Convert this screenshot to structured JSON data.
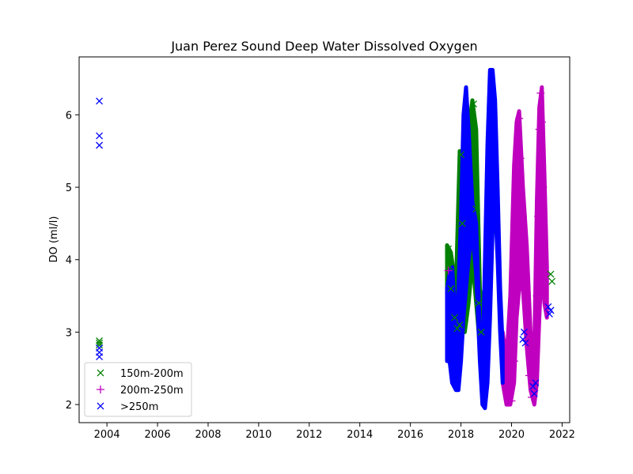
{
  "chart_data": {
    "type": "scatter",
    "title": "Juan Perez Sound Deep Water Dissolved Oxygen",
    "xlabel": "",
    "ylabel": "DO (ml/l)",
    "xlim": [
      2002.9,
      2022.3
    ],
    "ylim": [
      1.75,
      6.8
    ],
    "x_ticks": [
      2004,
      2006,
      2008,
      2010,
      2012,
      2014,
      2016,
      2018,
      2020,
      2022
    ],
    "y_ticks": [
      2,
      3,
      4,
      5,
      6
    ],
    "grid": false,
    "legend_position": "lower-left",
    "series": [
      {
        "name": "150m-200m",
        "marker": "x",
        "color": "#008000",
        "points": [
          [
            2003.7,
            2.88
          ],
          [
            2003.7,
            2.85
          ],
          [
            2003.7,
            2.82
          ],
          [
            2017.5,
            4.15
          ],
          [
            2017.55,
            3.9
          ],
          [
            2017.6,
            3.6
          ],
          [
            2017.75,
            3.2
          ],
          [
            2017.85,
            3.05
          ],
          [
            2017.95,
            3.1
          ],
          [
            2018.0,
            5.45
          ],
          [
            2018.05,
            4.5
          ],
          [
            2018.5,
            6.15
          ],
          [
            2018.55,
            5.5
          ],
          [
            2018.6,
            4.7
          ],
          [
            2018.7,
            3.4
          ],
          [
            2018.8,
            3.0
          ],
          [
            2021.55,
            3.8
          ],
          [
            2021.6,
            3.7
          ]
        ]
      },
      {
        "name": "200m-250m",
        "marker": "+",
        "color": "#bf00bf",
        "points": [
          [
            2017.5,
            3.85
          ],
          [
            2019.8,
            2.25
          ],
          [
            2019.9,
            2.1
          ],
          [
            2020.0,
            2.05
          ],
          [
            2020.1,
            2.6
          ],
          [
            2020.15,
            3.8
          ],
          [
            2020.2,
            5.2
          ],
          [
            2020.3,
            5.95
          ],
          [
            2020.35,
            5.4
          ],
          [
            2020.45,
            4.6
          ],
          [
            2020.5,
            3.8
          ],
          [
            2020.6,
            3.0
          ],
          [
            2020.7,
            2.4
          ],
          [
            2020.8,
            2.1
          ],
          [
            2020.9,
            2.2
          ],
          [
            2021.0,
            3.5
          ],
          [
            2021.05,
            4.6
          ],
          [
            2021.1,
            5.8
          ],
          [
            2021.15,
            6.3
          ],
          [
            2021.2,
            5.9
          ],
          [
            2021.25,
            5.0
          ],
          [
            2021.3,
            4.1
          ],
          [
            2021.35,
            3.8
          ]
        ]
      },
      {
        "name": ">250m",
        "marker": "x",
        "color": "#0000ff",
        "points": [
          [
            2003.7,
            6.19
          ],
          [
            2003.7,
            5.71
          ],
          [
            2003.7,
            5.58
          ],
          [
            2003.7,
            2.78
          ],
          [
            2003.7,
            2.72
          ],
          [
            2003.7,
            2.66
          ],
          [
            2020.45,
            2.9
          ],
          [
            2020.5,
            3.0
          ],
          [
            2020.55,
            2.85
          ],
          [
            2020.85,
            2.25
          ],
          [
            2020.9,
            2.15
          ],
          [
            2020.95,
            2.3
          ],
          [
            2021.45,
            3.35
          ],
          [
            2021.5,
            3.25
          ],
          [
            2021.55,
            3.3
          ]
        ]
      }
    ],
    "bands": [
      {
        "series": "150m-200m",
        "color": "#008000",
        "x": [
          2017.45,
          2017.6,
          2017.8,
          2017.95,
          2018.05,
          2018.15,
          2018.3,
          2018.45,
          2018.6,
          2018.75,
          2018.9
        ],
        "low": [
          3.5,
          3.0,
          2.9,
          3.0,
          3.2,
          3.0,
          3.4,
          4.0,
          3.4,
          2.8,
          2.6
        ],
        "high": [
          4.2,
          4.1,
          3.6,
          5.5,
          5.2,
          4.8,
          5.8,
          6.2,
          5.8,
          3.6,
          3.2
        ]
      },
      {
        "series": "200m-250m",
        "color": "#bf00bf",
        "x": [
          2019.65,
          2019.8,
          2019.95,
          2020.1,
          2020.2,
          2020.3,
          2020.45,
          2020.6,
          2020.75,
          2020.9,
          2021.0,
          2021.1,
          2021.2,
          2021.3,
          2021.4
        ],
        "low": [
          2.3,
          2.0,
          2.0,
          2.3,
          3.2,
          3.6,
          3.6,
          2.8,
          2.2,
          2.0,
          2.3,
          3.2,
          4.0,
          3.4,
          3.2
        ],
        "high": [
          3.0,
          2.6,
          3.5,
          5.3,
          5.9,
          6.05,
          5.0,
          4.2,
          3.0,
          2.8,
          4.8,
          6.1,
          6.38,
          5.2,
          3.9
        ]
      },
      {
        "series": ">250m",
        "color": "#0000ff",
        "x": [
          2017.45,
          2017.55,
          2017.65,
          2017.8,
          2017.9,
          2018.0,
          2018.1,
          2018.2,
          2018.3,
          2018.45,
          2018.6,
          2018.75,
          2018.85,
          2018.95,
          2019.05,
          2019.15,
          2019.25,
          2019.35,
          2019.45,
          2019.55,
          2019.65
        ],
        "low": [
          2.6,
          2.6,
          2.3,
          2.2,
          2.2,
          2.6,
          3.2,
          3.6,
          4.0,
          4.4,
          3.8,
          2.6,
          2.0,
          1.95,
          2.3,
          3.2,
          4.4,
          4.8,
          4.0,
          3.0,
          2.3
        ],
        "high": [
          3.6,
          3.8,
          3.9,
          3.1,
          3.6,
          4.6,
          6.0,
          6.38,
          5.8,
          4.8,
          4.5,
          3.0,
          2.4,
          4.0,
          5.6,
          6.62,
          6.62,
          6.2,
          5.0,
          3.6,
          2.8
        ]
      }
    ]
  }
}
